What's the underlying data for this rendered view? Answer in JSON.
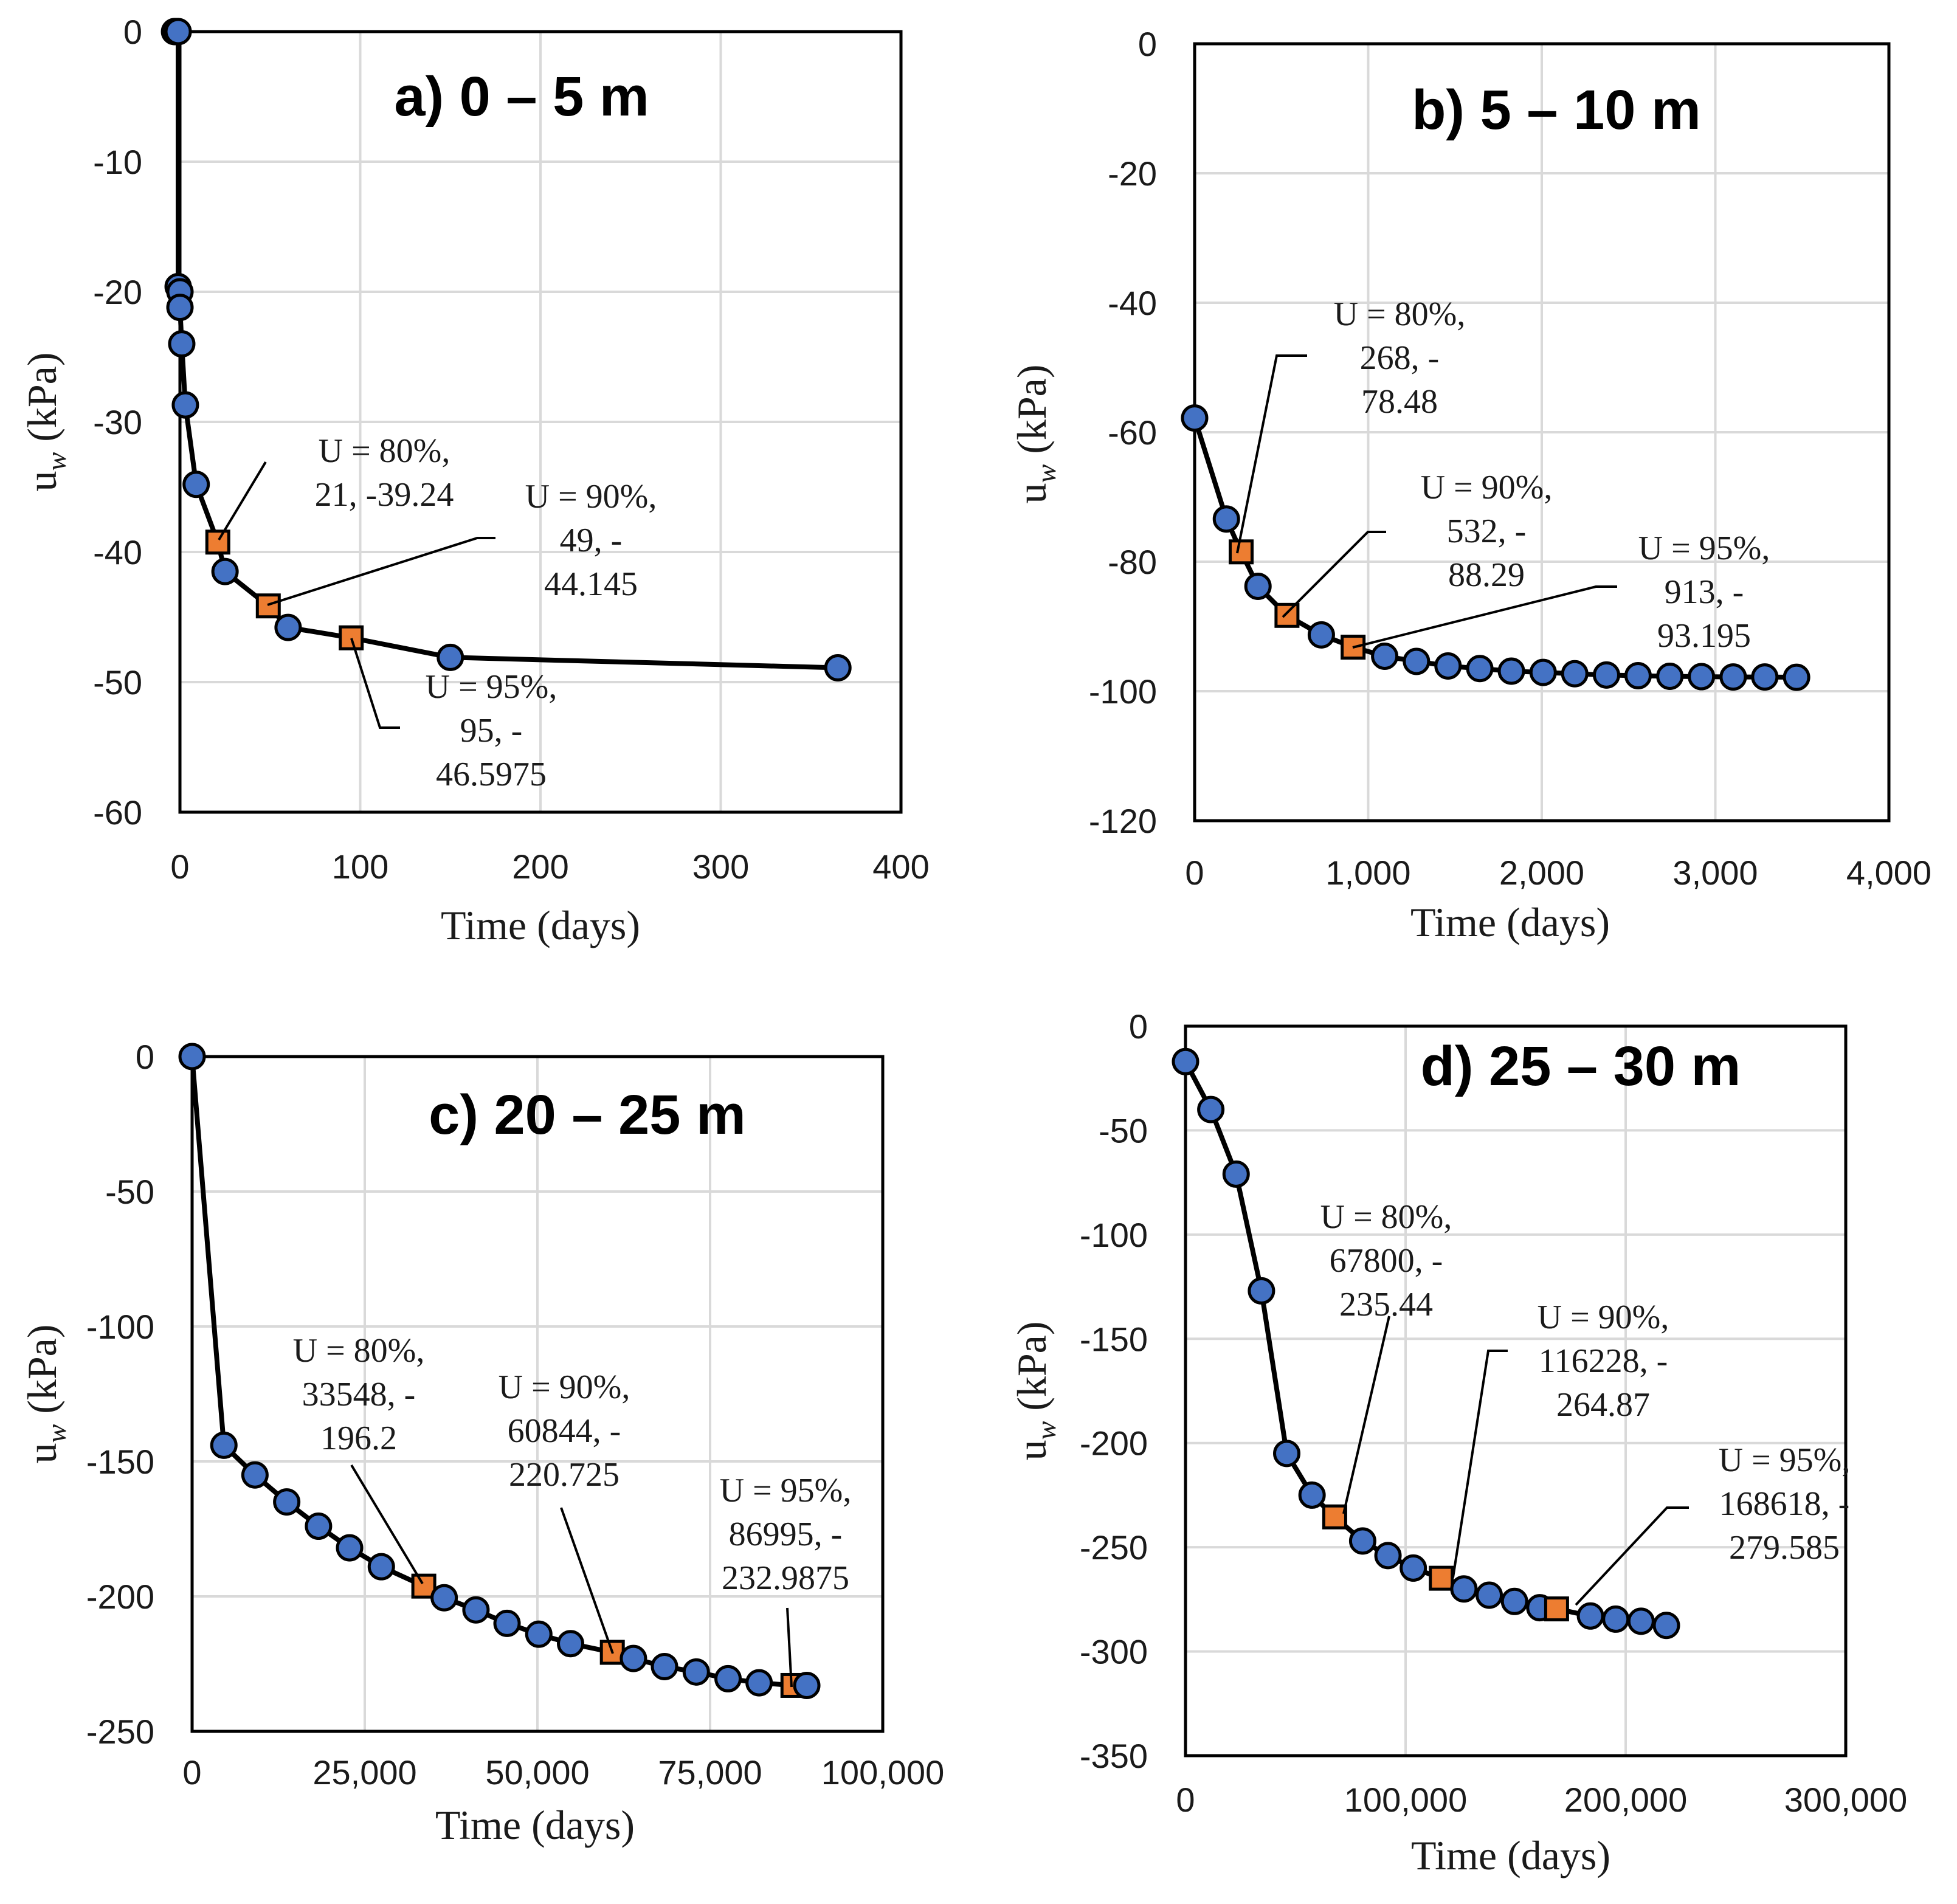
{
  "chart_data": [
    {
      "type": "line",
      "title": "a) 0 – 5 m",
      "xlabel": "Time (days)",
      "ylabel_main": "u",
      "ylabel_sub": "w",
      "ylabel_unit": " (kPa)",
      "xlim": [
        0,
        400
      ],
      "ylim": [
        -60,
        0
      ],
      "xticks": [
        0,
        100,
        200,
        300,
        400
      ],
      "xtick_labels": [
        "0",
        "100",
        "200",
        "300",
        "400"
      ],
      "yticks": [
        0,
        -10,
        -20,
        -30,
        -40,
        -50,
        -60
      ],
      "ytick_labels": [
        "0",
        "-10",
        "-20",
        "-30",
        "-40",
        "-50",
        "-60"
      ],
      "grid": true,
      "series": [
        {
          "name": "uw",
          "x": [
            -3,
            -2,
            -1,
            -1,
            0,
            0,
            1,
            3,
            9,
            21,
            25,
            49,
            60,
            95,
            150,
            365
          ],
          "y": [
            0,
            0,
            0,
            -19.6,
            -20,
            -21.2,
            -24,
            -28.7,
            -34.8,
            -39.24,
            -41.5,
            -44.145,
            -45.8,
            -46.5975,
            -48.1,
            -48.9
          ]
        }
      ],
      "annotations": [
        {
          "x": 21,
          "y": -39.24,
          "lines": [
            "U = 80%,",
            "21, -39.24"
          ]
        },
        {
          "x": 49,
          "y": -44.145,
          "lines": [
            "U = 90%,",
            "49, -",
            "44.145"
          ]
        },
        {
          "x": 95,
          "y": -46.5975,
          "lines": [
            "U = 95%,",
            "95, -",
            "46.5975"
          ]
        }
      ]
    },
    {
      "type": "line",
      "title": "b) 5 – 10 m",
      "xlabel": "Time (days)",
      "ylabel_main": "u",
      "ylabel_sub": "w",
      "ylabel_unit": " (kPa)",
      "xlim": [
        0,
        4000
      ],
      "ylim": [
        -120,
        0
      ],
      "xticks": [
        0,
        1000,
        2000,
        3000,
        4000
      ],
      "xtick_labels": [
        "0",
        "1,000",
        "2,000",
        "3,000",
        "4,000"
      ],
      "yticks": [
        0,
        -20,
        -40,
        -60,
        -80,
        -100,
        -120
      ],
      "ytick_labels": [
        "0",
        "-20",
        "-40",
        "-60",
        "-80",
        "-100",
        "-120"
      ],
      "grid": true,
      "series": [
        {
          "name": "uw",
          "x": [
            0,
            183,
            268,
            365,
            532,
            730,
            913,
            1095,
            1278,
            1460,
            1643,
            1825,
            2008,
            2190,
            2373,
            2555,
            2738,
            2920,
            3103,
            3285,
            3468
          ],
          "y": [
            -57.8,
            -73.4,
            -78.48,
            -83.8,
            -88.29,
            -91.3,
            -93.195,
            -94.6,
            -95.4,
            -96.1,
            -96.5,
            -96.9,
            -97.1,
            -97.3,
            -97.5,
            -97.6,
            -97.7,
            -97.75,
            -97.8,
            -97.8,
            -97.85
          ]
        }
      ],
      "annotations": [
        {
          "x": 268,
          "y": -78.48,
          "lines": [
            "U = 80%,",
            "268, -",
            "78.48"
          ]
        },
        {
          "x": 532,
          "y": -88.29,
          "lines": [
            "U = 90%,",
            "532, -",
            "88.29"
          ]
        },
        {
          "x": 913,
          "y": -93.195,
          "lines": [
            "U = 95%,",
            "913, -",
            "93.195"
          ]
        }
      ]
    },
    {
      "type": "line",
      "title": "c) 20 – 25 m",
      "xlabel": "Time (days)",
      "ylabel_main": "u",
      "ylabel_sub": "w",
      "ylabel_unit": " (kPa)",
      "xlim": [
        0,
        100000
      ],
      "ylim": [
        -250,
        0
      ],
      "xticks": [
        0,
        25000,
        50000,
        75000,
        100000
      ],
      "xtick_labels": [
        "0",
        "25,000",
        "50,000",
        "75,000",
        "100,000"
      ],
      "yticks": [
        0,
        -50,
        -100,
        -150,
        -200,
        -250
      ],
      "ytick_labels": [
        "0",
        "-50",
        "-100",
        "-150",
        "-200",
        "-250"
      ],
      "grid": true,
      "series": [
        {
          "name": "uw",
          "x": [
            0,
            4600,
            9100,
            13700,
            18300,
            22800,
            27400,
            33548,
            36500,
            41100,
            45600,
            50200,
            54800,
            60844,
            63900,
            68400,
            73000,
            77600,
            82100,
            86995,
            89000
          ],
          "y": [
            0,
            -144,
            -155,
            -165,
            -174,
            -182,
            -189,
            -196.2,
            -200.5,
            -205,
            -210,
            -214,
            -217.5,
            -220.725,
            -223,
            -226,
            -228,
            -230.5,
            -232,
            -232.9875,
            -233
          ]
        }
      ],
      "annotations": [
        {
          "x": 33548,
          "y": -196.2,
          "lines": [
            "U = 80%,",
            "33548, -",
            "196.2"
          ]
        },
        {
          "x": 60844,
          "y": -220.725,
          "lines": [
            "U = 90%,",
            "60844, -",
            "220.725"
          ]
        },
        {
          "x": 86995,
          "y": -232.9875,
          "lines": [
            "U = 95%,",
            "86995, -",
            "232.9875"
          ]
        }
      ]
    },
    {
      "type": "line",
      "title": "d) 25 – 30 m",
      "xlabel": "Time (days)",
      "ylabel_main": "u",
      "ylabel_sub": "w",
      "ylabel_unit": " (kPa)",
      "xlim": [
        0,
        300000
      ],
      "ylim": [
        -350,
        0
      ],
      "xticks": [
        0,
        100000,
        200000,
        300000
      ],
      "xtick_labels": [
        "0",
        "100,000",
        "200,000",
        "300,000"
      ],
      "yticks": [
        0,
        -50,
        -100,
        -150,
        -200,
        -250,
        -300,
        -350
      ],
      "ytick_labels": [
        "0",
        "-50",
        "-100",
        "-150",
        "-200",
        "-250",
        "-300",
        "-350"
      ],
      "grid": true,
      "series": [
        {
          "name": "uw",
          "x": [
            0,
            11500,
            23000,
            34500,
            46000,
            57500,
            67800,
            80500,
            92000,
            103500,
            116228,
            126500,
            138000,
            149500,
            161000,
            168618,
            184000,
            195500,
            207000,
            218500
          ],
          "y": [
            -17,
            -40,
            -71,
            -127,
            -205,
            -225,
            -235.44,
            -247,
            -254,
            -260,
            -264.87,
            -270,
            -273,
            -276,
            -279,
            -279.585,
            -283,
            -284.5,
            -285.5,
            -287.5
          ]
        }
      ],
      "annotations": [
        {
          "x": 67800,
          "y": -235.44,
          "lines": [
            "U = 80%,",
            "67800, -",
            "235.44"
          ]
        },
        {
          "x": 116228,
          "y": -264.87,
          "lines": [
            "U = 90%,",
            "116228, -",
            "264.87"
          ]
        },
        {
          "x": 168618,
          "y": -279.585,
          "lines": [
            "U = 95%,",
            "168618, -",
            "279.585"
          ]
        }
      ]
    }
  ]
}
